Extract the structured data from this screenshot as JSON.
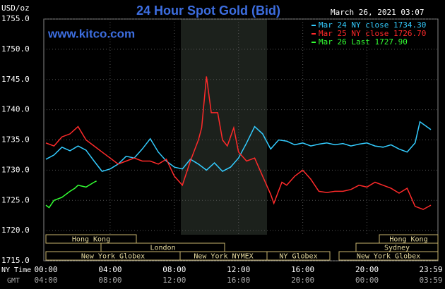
{
  "chart_data": {
    "type": "line",
    "title": "24 Hour Spot Gold (Bid)",
    "source": "www.kitco.com",
    "timestamp": "March 26, 2021 03:07",
    "y_label": "USD/oz",
    "x_label": "NY Time",
    "x2_label": "GMT",
    "xlim": [
      0,
      23.98
    ],
    "xticks": [
      {
        "value": 0,
        "label": "00:00"
      },
      {
        "value": 4,
        "label": "04:00"
      },
      {
        "value": 8,
        "label": "08:00"
      },
      {
        "value": 12,
        "label": "12:00"
      },
      {
        "value": 16,
        "label": "16:00"
      },
      {
        "value": 20,
        "label": "20:00"
      },
      {
        "value": 23.98,
        "label": "23:59"
      }
    ],
    "x2ticklabels": [
      "04:00",
      "08:00",
      "12:00",
      "16:00",
      "20:00",
      "00:00",
      "03:59"
    ],
    "ylim": [
      1715,
      1755
    ],
    "yticks": [
      {
        "value": 1715,
        "label": "1715.0"
      },
      {
        "value": 1720,
        "label": "1720.0"
      },
      {
        "value": 1725,
        "label": "1725.0"
      },
      {
        "value": 1730,
        "label": "1730.0"
      },
      {
        "value": 1735,
        "label": "1735.0"
      },
      {
        "value": 1740,
        "label": "1740.0"
      },
      {
        "value": 1745,
        "label": "1745.0"
      },
      {
        "value": 1750,
        "label": "1750.0"
      },
      {
        "value": 1755,
        "label": "1755.0"
      }
    ],
    "grid": true,
    "sessions": [
      "Hong Kong",
      "London",
      "New York Globex",
      "New York NYMEX",
      "NY Globex",
      "Hong Kong",
      "Sydney",
      "New York Globex"
    ],
    "series": [
      {
        "name": "Mar 24 NY close 1734.30",
        "color": "#33ccff",
        "x": [
          0,
          0.5,
          1,
          1.5,
          2,
          2.5,
          3,
          3.5,
          4,
          4.5,
          5,
          5.5,
          6,
          6.5,
          7,
          7.5,
          8,
          8.5,
          9,
          9.5,
          10,
          10.5,
          11,
          11.5,
          12,
          12.5,
          13,
          13.5,
          14,
          14.5,
          15,
          15.5,
          16,
          16.5,
          17,
          17.5,
          18,
          18.5,
          19,
          19.5,
          20,
          20.5,
          21,
          21.5,
          22,
          22.5,
          23,
          23.3,
          23.98
        ],
        "values": [
          1731.8,
          1732.5,
          1733.8,
          1733.2,
          1734.0,
          1733.3,
          1731.5,
          1729.8,
          1730.2,
          1731.0,
          1732.3,
          1732.0,
          1733.5,
          1735.2,
          1733.0,
          1731.5,
          1730.5,
          1730.2,
          1731.8,
          1731.0,
          1730.0,
          1731.2,
          1729.8,
          1730.5,
          1732.0,
          1734.5,
          1737.2,
          1736.0,
          1733.5,
          1735.0,
          1734.8,
          1734.2,
          1734.5,
          1734.0,
          1734.3,
          1734.5,
          1734.2,
          1734.4,
          1734.0,
          1734.3,
          1734.5,
          1734.0,
          1733.8,
          1734.2,
          1733.5,
          1733.0,
          1734.5,
          1738.0,
          1736.7
        ]
      },
      {
        "name": "Mar 25 NY close 1726.70",
        "color": "#ff2a2a",
        "x": [
          0,
          0.5,
          1,
          1.5,
          2,
          2.5,
          3,
          3.5,
          4,
          4.5,
          5,
          5.5,
          6,
          6.5,
          7,
          7.5,
          8,
          8.5,
          9,
          9.5,
          9.7,
          10,
          10.3,
          10.7,
          11,
          11.3,
          11.7,
          12,
          12.5,
          13,
          13.5,
          14,
          14.2,
          14.7,
          15,
          15.5,
          16,
          16.5,
          17,
          17.5,
          18,
          18.5,
          19,
          19.5,
          20,
          20.5,
          21,
          21.5,
          22,
          22.5,
          23,
          23.5,
          23.98
        ],
        "values": [
          1734.5,
          1734.0,
          1735.5,
          1736.0,
          1737.2,
          1735.0,
          1734.0,
          1733.0,
          1732.0,
          1731.0,
          1731.5,
          1732.0,
          1731.5,
          1731.5,
          1731.0,
          1731.8,
          1729.0,
          1727.5,
          1731.5,
          1735.0,
          1737.0,
          1745.5,
          1739.5,
          1739.5,
          1735.0,
          1734.0,
          1737.0,
          1733.0,
          1731.5,
          1732.0,
          1729.0,
          1726.0,
          1724.5,
          1728.0,
          1727.5,
          1729.0,
          1730.0,
          1728.5,
          1726.5,
          1726.3,
          1726.5,
          1726.5,
          1726.8,
          1727.5,
          1727.2,
          1728.0,
          1727.5,
          1727.0,
          1726.2,
          1727.0,
          1724.0,
          1723.5,
          1724.2
        ]
      },
      {
        "name": "Mar 26 Last 1727.90",
        "color": "#33ff33",
        "x": [
          0,
          0.2,
          0.5,
          1,
          1.5,
          1.8,
          2,
          2.5,
          3,
          3.15
        ],
        "values": [
          1724.2,
          1723.8,
          1725.0,
          1725.5,
          1726.5,
          1727.0,
          1727.5,
          1727.2,
          1728.0,
          1728.2
        ]
      }
    ]
  }
}
